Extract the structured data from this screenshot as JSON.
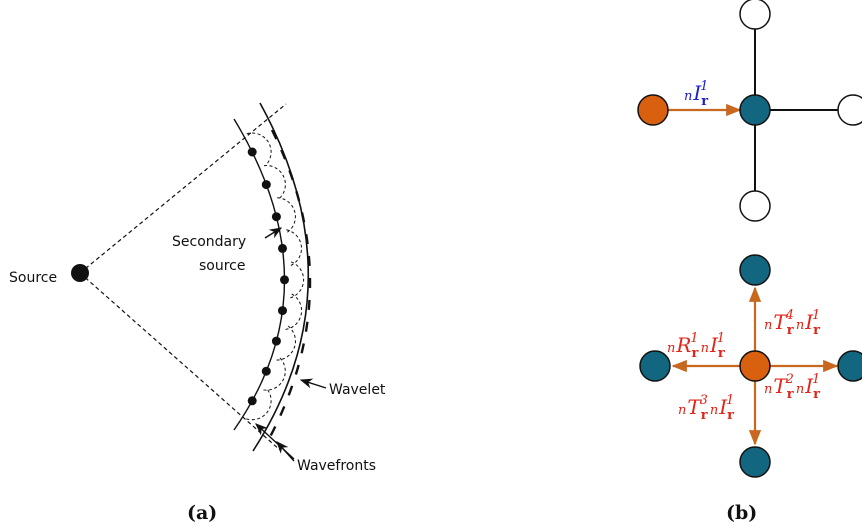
{
  "panel_a": {
    "label": "(a)",
    "source_label": "Source",
    "secondary_label_line1": "Secondary",
    "secondary_label_line2": "source",
    "wavelet_label": "Wavelet",
    "wavefronts_label": "Wavefronts"
  },
  "panel_b": {
    "label": "(b)",
    "incident": {
      "prefix": "n",
      "main": "I",
      "sub": "r",
      "sup": "1"
    },
    "terms": [
      {
        "prefix": "n",
        "main": "R",
        "sub": "r",
        "sup": "1"
      },
      {
        "prefix": "n",
        "main": "I",
        "sub": "r",
        "sup": "1"
      },
      {
        "prefix": "n",
        "main": "T",
        "sub": "r",
        "sup": "4"
      },
      {
        "prefix": "n",
        "main": "I",
        "sub": "r",
        "sup": "1"
      },
      {
        "prefix": "n",
        "main": "T",
        "sub": "r",
        "sup": "2"
      },
      {
        "prefix": "n",
        "main": "I",
        "sub": "r",
        "sup": "1"
      },
      {
        "prefix": "n",
        "main": "T",
        "sub": "r",
        "sup": "3"
      },
      {
        "prefix": "n",
        "main": "I",
        "sub": "r",
        "sup": "1"
      }
    ]
  },
  "colors": {
    "teal": "#12667f",
    "orange": "#d9600e",
    "arrow": "#c8671f",
    "blue_text": "#1f1fd0",
    "red_text": "#e0261a",
    "line": "#111111"
  }
}
